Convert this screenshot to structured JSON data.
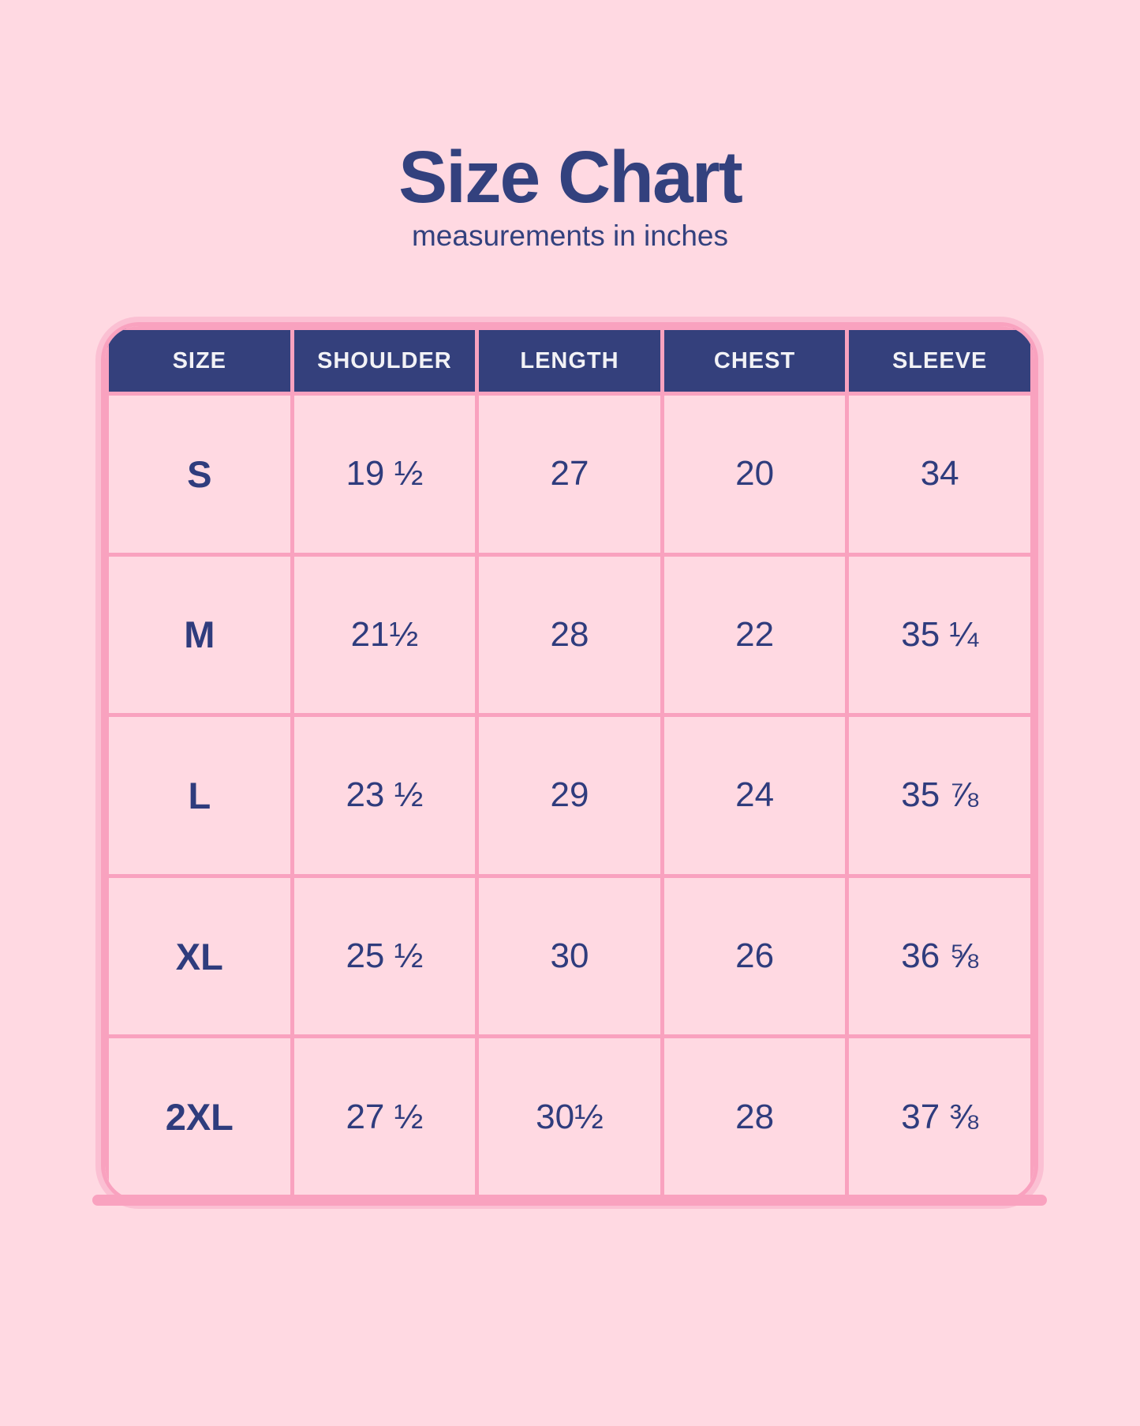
{
  "header": {
    "title": "Size Chart",
    "subtitle": "measurements in inches"
  },
  "colors": {
    "page_background": "#FFD9E2",
    "accent_pink_border": "#F9A2BF",
    "halo_pink": "#FBC0D3",
    "header_background": "#34407C",
    "header_text": "#F2F2F6",
    "body_text_navy": "#2F3C7D",
    "title_navy": "#33417E"
  },
  "chart_data": {
    "type": "table",
    "title": "Size Chart",
    "subtitle": "measurements in inches",
    "columns": [
      "SIZE",
      "SHOULDER",
      "LENGTH",
      "CHEST",
      "SLEEVE"
    ],
    "rows": [
      {
        "size": "S",
        "values": [
          "19 ½",
          "27",
          "20",
          "34"
        ]
      },
      {
        "size": "M",
        "values": [
          "21½",
          "28",
          "22",
          "35 ¼"
        ]
      },
      {
        "size": "L",
        "values": [
          "23 ½",
          "29",
          "24",
          "35 ⅞"
        ]
      },
      {
        "size": "XL",
        "values": [
          "25 ½",
          "30",
          "26",
          "36 ⅝"
        ]
      },
      {
        "size": "2XL",
        "values": [
          "27 ½",
          "30½",
          "28",
          "37 ⅜"
        ]
      }
    ]
  }
}
